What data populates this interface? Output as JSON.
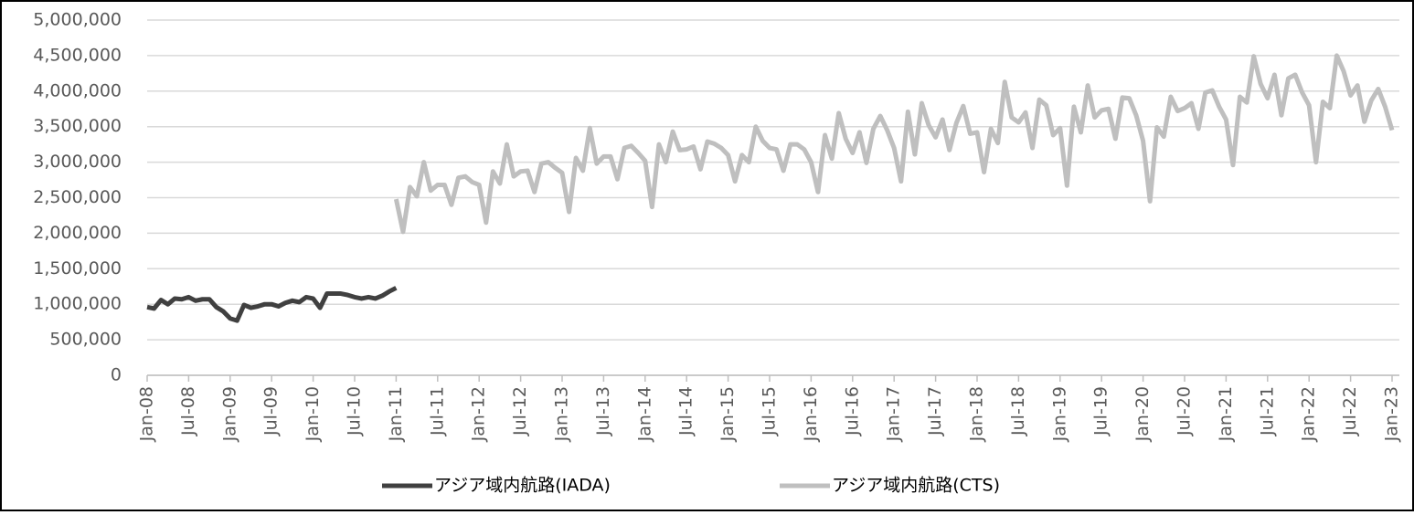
{
  "chart_data": {
    "type": "line",
    "categories": [
      "Jan-08",
      null,
      null,
      null,
      null,
      null,
      "Jul-08",
      null,
      null,
      null,
      null,
      null,
      "Jan-09",
      null,
      null,
      null,
      null,
      null,
      "Jul-09",
      null,
      null,
      null,
      null,
      null,
      "Jan-10",
      null,
      null,
      null,
      null,
      null,
      "Jul-10",
      null,
      null,
      null,
      null,
      null,
      "Jan-11",
      null,
      null,
      null,
      null,
      null,
      "Jul-11",
      null,
      null,
      null,
      null,
      null,
      "Jan-12",
      null,
      null,
      null,
      null,
      null,
      "Jul-12",
      null,
      null,
      null,
      null,
      null,
      "Jan-13",
      null,
      null,
      null,
      null,
      null,
      "Jul-13",
      null,
      null,
      null,
      null,
      null,
      "Jan-14",
      null,
      null,
      null,
      null,
      null,
      "Jul-14",
      null,
      null,
      null,
      null,
      null,
      "Jan-15",
      null,
      null,
      null,
      null,
      null,
      "Jul-15",
      null,
      null,
      null,
      null,
      null,
      "Jan-16",
      null,
      null,
      null,
      null,
      null,
      "Jul-16",
      null,
      null,
      null,
      null,
      null,
      "Jan-17",
      null,
      null,
      null,
      null,
      null,
      "Jul-17",
      null,
      null,
      null,
      null,
      null,
      "Jan-18",
      null,
      null,
      null,
      null,
      null,
      "Jul-18",
      null,
      null,
      null,
      null,
      null,
      "Jan-19",
      null,
      null,
      null,
      null,
      null,
      "Jul-19",
      null,
      null,
      null,
      null,
      null,
      "Jan-20",
      null,
      null,
      null,
      null,
      null,
      "Jul-20",
      null,
      null,
      null,
      null,
      null,
      "Jan-21",
      null,
      null,
      null,
      null,
      null,
      "Jul-21",
      null,
      null,
      null,
      null,
      null,
      "Jan-22",
      null,
      null,
      null,
      null,
      null,
      "Jul-22",
      null,
      null,
      null,
      null,
      null,
      "Jan-23"
    ],
    "series": [
      {
        "name": "アジア域内航路(IADA)",
        "color": "#404040",
        "values": [
          960000,
          940000,
          1060000,
          1000000,
          1080000,
          1070000,
          1100000,
          1050000,
          1070000,
          1070000,
          960000,
          900000,
          800000,
          770000,
          990000,
          950000,
          970000,
          1000000,
          1000000,
          970000,
          1020000,
          1050000,
          1030000,
          1100000,
          1080000,
          950000,
          1150000,
          1150000,
          1150000,
          1130000,
          1100000,
          1080000,
          1100000,
          1080000,
          1120000,
          1180000,
          1230000,
          null,
          null,
          null,
          null,
          null,
          null,
          null,
          null,
          null,
          null,
          null,
          null,
          null,
          null,
          null,
          null,
          null,
          null,
          null,
          null,
          null,
          null,
          null,
          null,
          null,
          null,
          null,
          null,
          null,
          null,
          null,
          null,
          null,
          null,
          null,
          null,
          null,
          null,
          null,
          null,
          null,
          null,
          null,
          null,
          null,
          null,
          null,
          null,
          null,
          null,
          null,
          null,
          null,
          null,
          null,
          null,
          null,
          null,
          null,
          null,
          null,
          null,
          null,
          null,
          null,
          null,
          null,
          null,
          null,
          null,
          null,
          null,
          null,
          null,
          null,
          null,
          null,
          null,
          null,
          null,
          null,
          null,
          null,
          null,
          null,
          null,
          null,
          null,
          null,
          null,
          null,
          null,
          null,
          null,
          null,
          null,
          null,
          null,
          null,
          null,
          null,
          null,
          null,
          null,
          null,
          null,
          null,
          null,
          null,
          null,
          null,
          null,
          null,
          null,
          null,
          null,
          null,
          null,
          null,
          null,
          null,
          null,
          null,
          null,
          null,
          null,
          null,
          null,
          null,
          null,
          null,
          null,
          null,
          null,
          null,
          null,
          null,
          null,
          null,
          null,
          null,
          null,
          null,
          null
        ]
      },
      {
        "name": "アジア域内航路(CTS)",
        "color": "#bfbfbf",
        "values": [
          null,
          null,
          null,
          null,
          null,
          null,
          null,
          null,
          null,
          null,
          null,
          null,
          null,
          null,
          null,
          null,
          null,
          null,
          null,
          null,
          null,
          null,
          null,
          null,
          null,
          null,
          null,
          null,
          null,
          null,
          null,
          null,
          null,
          null,
          null,
          null,
          2480000,
          2020000,
          2650000,
          2520000,
          3000000,
          2600000,
          2680000,
          2680000,
          2400000,
          2780000,
          2800000,
          2720000,
          2680000,
          2150000,
          2870000,
          2700000,
          3250000,
          2800000,
          2870000,
          2880000,
          2580000,
          2980000,
          3000000,
          2920000,
          2850000,
          2300000,
          3060000,
          2880000,
          3480000,
          2980000,
          3080000,
          3080000,
          2760000,
          3200000,
          3230000,
          3130000,
          3020000,
          2370000,
          3250000,
          3000000,
          3430000,
          3170000,
          3180000,
          3220000,
          2900000,
          3290000,
          3260000,
          3200000,
          3100000,
          2730000,
          3100000,
          3000000,
          3500000,
          3300000,
          3200000,
          3180000,
          2880000,
          3250000,
          3250000,
          3180000,
          3000000,
          2580000,
          3380000,
          3050000,
          3690000,
          3330000,
          3130000,
          3420000,
          2990000,
          3470000,
          3650000,
          3450000,
          3200000,
          2730000,
          3710000,
          3110000,
          3830000,
          3520000,
          3350000,
          3600000,
          3170000,
          3550000,
          3790000,
          3400000,
          3420000,
          2860000,
          3470000,
          3270000,
          4130000,
          3630000,
          3560000,
          3700000,
          3200000,
          3880000,
          3800000,
          3380000,
          3480000,
          2670000,
          3780000,
          3420000,
          4080000,
          3630000,
          3730000,
          3750000,
          3330000,
          3910000,
          3900000,
          3660000,
          3300000,
          2450000,
          3490000,
          3360000,
          3920000,
          3720000,
          3760000,
          3830000,
          3470000,
          3980000,
          4010000,
          3780000,
          3600000,
          2960000,
          3920000,
          3840000,
          4490000,
          4100000,
          3900000,
          4230000,
          3660000,
          4180000,
          4230000,
          3980000,
          3800000,
          3000000,
          3850000,
          3760000,
          4500000,
          4280000,
          3940000,
          4080000,
          3570000,
          3870000,
          4030000,
          3780000,
          3450000
        ]
      }
    ],
    "ylim": [
      0,
      5000000
    ],
    "yticks": [
      0,
      {
        "value": 500000,
        "label": "500,000"
      },
      {
        "value": 1000000,
        "label": "1,000,000"
      },
      {
        "value": 1500000,
        "label": "1,500,000"
      },
      {
        "value": 2000000,
        "label": "2,000,000"
      },
      {
        "value": 2500000,
        "label": "2,500,000"
      },
      {
        "value": 3000000,
        "label": "3,000,000"
      },
      {
        "value": 3500000,
        "label": "3,500,000"
      },
      {
        "value": 4000000,
        "label": "4,000,000"
      },
      {
        "value": 4500000,
        "label": "4,500,000"
      },
      {
        "value": 5000000,
        "label": "5,000,000"
      }
    ],
    "grid": true,
    "legend": "bottom"
  }
}
